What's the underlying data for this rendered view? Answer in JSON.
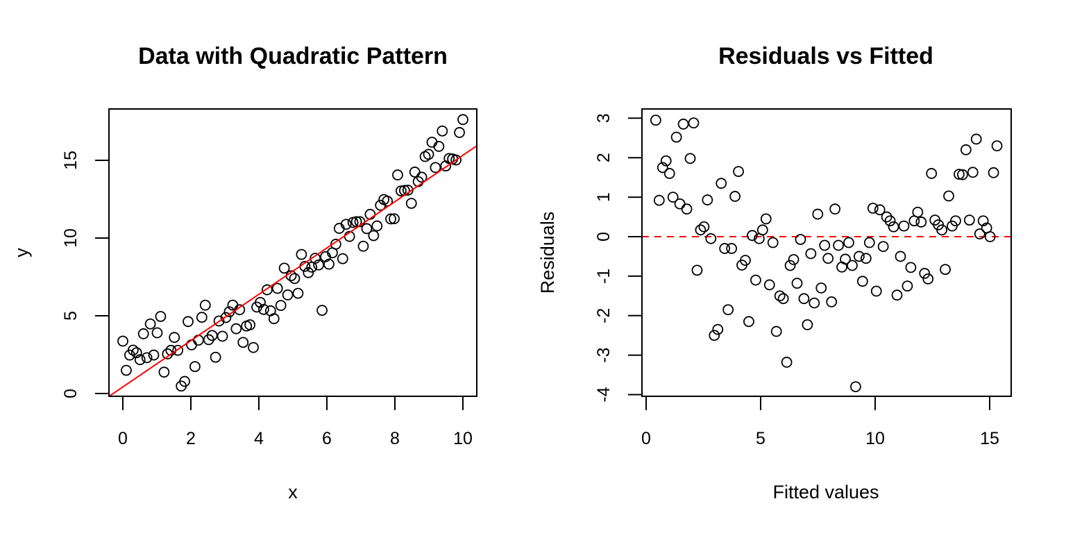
{
  "chart_data": [
    {
      "type": "scatter",
      "title": "Data with Quadratic Pattern",
      "xlabel": "x",
      "ylabel": "y",
      "xlim": [
        -0.4,
        10.4
      ],
      "ylim": [
        -0.2,
        18.3
      ],
      "xticks": [
        0,
        2,
        4,
        6,
        8,
        10
      ],
      "yticks": [
        0,
        5,
        10,
        15
      ],
      "grid": false,
      "marker": "open-circle",
      "point_color": "#000000",
      "fit_line": {
        "intercept": 0.42,
        "slope": 1.49,
        "color": "#ff0000",
        "style": "solid"
      },
      "n_points": 100,
      "x_start": 0,
      "x_end": 10,
      "residuals": [
        2.95,
        0.92,
        1.75,
        1.92,
        1.6,
        1.0,
        2.52,
        0.83,
        2.85,
        0.7,
        1.98,
        2.88,
        -0.85,
        0.17,
        0.25,
        0.93,
        -0.05,
        -2.5,
        -2.35,
        1.35,
        -0.3,
        -1.85,
        -0.3,
        1.02,
        1.65,
        -0.72,
        -0.6,
        -2.15,
        0.03,
        -1.1,
        -0.05,
        0.17,
        0.45,
        -1.22,
        -0.15,
        -2.4,
        -1.5,
        -1.57,
        -3.18,
        -0.73,
        -0.58,
        -1.18,
        -0.07,
        -1.57,
        -2.23,
        -0.43,
        -1.68,
        0.57,
        -1.3,
        -0.22,
        -0.55,
        -1.65,
        0.7,
        -0.22,
        -0.77,
        -0.57,
        -0.15,
        -0.73,
        -3.8,
        -0.5,
        -1.13,
        -0.55,
        -0.15,
        0.72,
        -1.38,
        0.68,
        -0.25,
        0.5,
        0.4,
        0.25,
        -1.48,
        -0.5,
        0.27,
        -1.25,
        -0.78,
        0.4,
        0.62,
        0.37,
        -0.93,
        -1.07,
        1.6,
        0.42,
        0.3,
        0.17,
        -0.83,
        1.03,
        0.27,
        0.4,
        1.58,
        1.57,
        2.2,
        0.42,
        1.63,
        2.47,
        0.07,
        0.4,
        0.22,
        0.0,
        1.62,
        2.3
      ]
    },
    {
      "type": "scatter",
      "title": "Residuals vs Fitted",
      "xlabel": "Fitted values",
      "ylabel": "Residuals",
      "xlim": [
        -0.2,
        15.9
      ],
      "ylim": [
        -4.0,
        3.3
      ],
      "xticks": [
        0,
        5,
        10,
        15
      ],
      "yticks": [
        -4,
        -3,
        -2,
        -1,
        0,
        1,
        2,
        3
      ],
      "grid": false,
      "marker": "open-circle",
      "point_color": "#000000",
      "reference_line": {
        "y": 0,
        "color": "#ff0000",
        "style": "dashed"
      },
      "source": "same residuals as panel 1, plotted against fitted = 0.42 + 1.49*x"
    }
  ],
  "panels": {
    "left": {
      "title": "Data with Quadratic Pattern",
      "xlabel": "x",
      "ylabel": "y",
      "xticks": [
        "0",
        "2",
        "4",
        "6",
        "8",
        "10"
      ],
      "yticks": [
        "0",
        "5",
        "10",
        "15"
      ]
    },
    "right": {
      "title": "Residuals vs Fitted",
      "xlabel": "Fitted values",
      "ylabel": "Residuals",
      "xticks": [
        "0",
        "5",
        "10",
        "15"
      ],
      "yticks": [
        "-4",
        "-3",
        "-2",
        "-1",
        "0",
        "1",
        "2",
        "3"
      ]
    }
  },
  "colors": {
    "fit_line": "#ff0000",
    "zero_line": "#ff0000",
    "points": "#000000",
    "axes": "#000000"
  }
}
